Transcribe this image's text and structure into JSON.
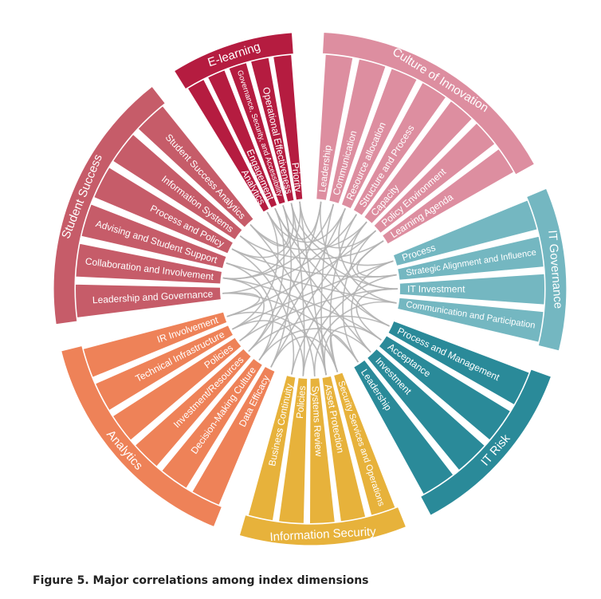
{
  "caption": "Figure 5. Major correlations among index dimensions",
  "link_color": "#b3b3b3",
  "groups": [
    {
      "name": "Culture of Innovation",
      "color": "#dd8ea0",
      "segments": [
        "Leadership",
        "Communication",
        "Resource allocation",
        "Structure and Process",
        "Capacity",
        "Policy Environment",
        "Learning Agenda"
      ]
    },
    {
      "name": "IT Governance",
      "color": "#74b7c1",
      "segments": [
        "Process",
        "Strategic Alignment and Influence",
        "IT Investment",
        "Communication and Participation"
      ]
    },
    {
      "name": "IT Risk",
      "color": "#2a8a99",
      "segments": [
        "Process and Management",
        "Acceptance",
        "Investment",
        "Leadership"
      ]
    },
    {
      "name": "Information Security",
      "color": "#e7b23b",
      "segments": [
        "Security Services and Operations",
        "Asset Protection",
        "Systems Review",
        "Policies",
        "Business Continuity"
      ]
    },
    {
      "name": "Analytics",
      "color": "#ee8258",
      "segments": [
        "Data Efficacy",
        "Decision-Making Culture",
        "Investment/Resources",
        "Policies",
        "Technical Infrastructure",
        "IR Involvement"
      ]
    },
    {
      "name": "Student Success",
      "color": "#c65c69",
      "segments": [
        "Leadership and Governance",
        "Collaboration and Involvement",
        "Advising and Student Support",
        "Process and Policy",
        "Information Systems",
        "Student Success Analytics"
      ]
    },
    {
      "name": "E-learning",
      "color": "#b51c40",
      "segments": [
        "Analytics",
        "Engagement",
        "Governance, Security, and Accessibility",
        "Operational Effectiveness",
        "Priority"
      ]
    }
  ]
}
